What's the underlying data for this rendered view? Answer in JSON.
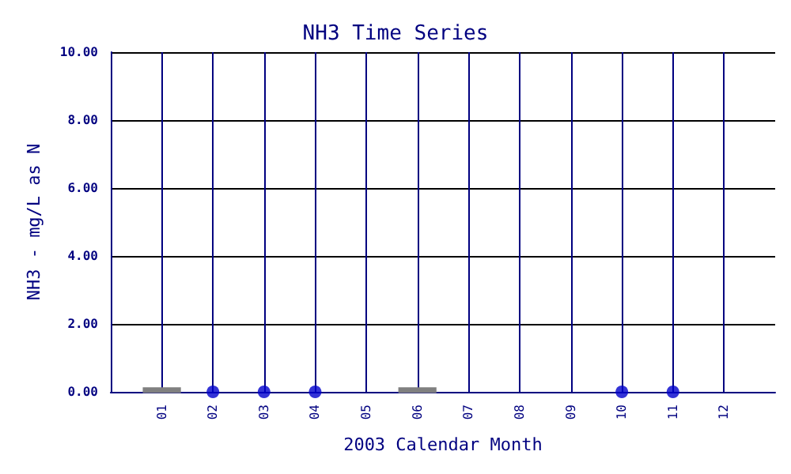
{
  "chart_data": {
    "type": "box",
    "title": "NH3 Time Series",
    "xlabel": "2003 Calendar Month",
    "ylabel": "NH3 - mg/L as N",
    "categories": [
      "01",
      "02",
      "03",
      "04",
      "05",
      "06",
      "07",
      "08",
      "09",
      "10",
      "11",
      "12"
    ],
    "color": "#808080",
    "boxes": [
      {
        "low": 0,
        "q1": 0,
        "median": 0.05,
        "q3": 0.1,
        "high": 0.1
      },
      null,
      null,
      null,
      null,
      {
        "low": 0,
        "q1": 0,
        "median": 0.05,
        "q3": 0.1,
        "high": 0.1
      },
      null,
      null,
      null,
      null,
      null,
      null
    ],
    "series": [
      {
        "type": "scatter",
        "color": "#0000cc",
        "x": [
          "02",
          "03",
          "04",
          "10",
          "11"
        ],
        "values": [
          0,
          0,
          0,
          0,
          0
        ]
      }
    ],
    "ylim": [
      0,
      10
    ],
    "yticks": [
      {
        "value": 0,
        "label": "0.00"
      },
      {
        "value": 2,
        "label": "2.00"
      },
      {
        "value": 4,
        "label": "4.00"
      },
      {
        "value": 6,
        "label": "6.00"
      },
      {
        "value": 8,
        "label": "8.00"
      },
      {
        "value": 10,
        "label": "10.00"
      }
    ],
    "grid": true,
    "marker": "circle"
  }
}
